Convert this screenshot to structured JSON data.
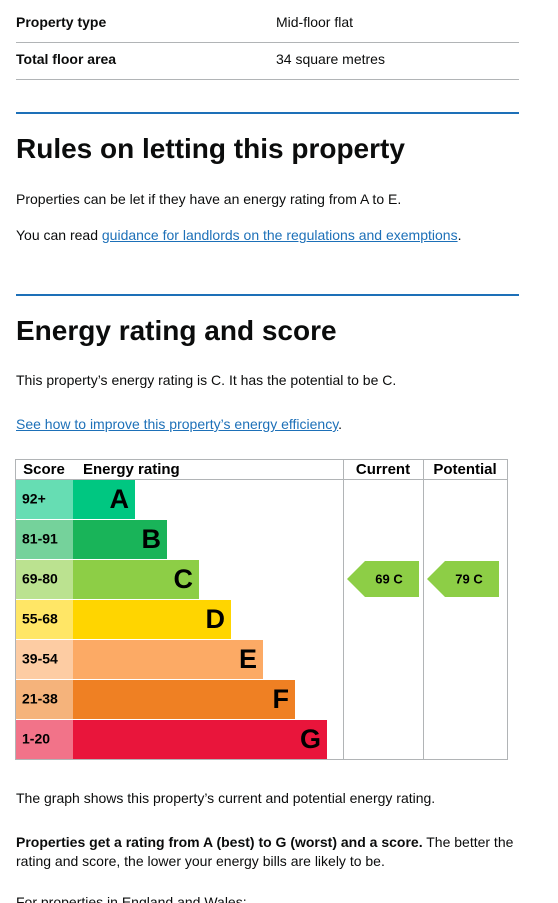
{
  "summary": {
    "rows": [
      [
        "Property type",
        "Mid-floor flat"
      ],
      [
        "Total floor area",
        "34 square metres"
      ]
    ]
  },
  "rules": {
    "title": "Rules on letting this property",
    "text": "Properties can be let if they have an energy rating from A to E.",
    "link_prefix": "You can read ",
    "link": "guidance for landlords on the regulations and exemptions",
    "link_suffix": "."
  },
  "energy": {
    "title": "Energy rating and score",
    "text": "This property’s energy rating is C. It has the potential to be C.",
    "link": "See how to improve this property’s energy efficiency",
    "link_suffix": ".",
    "chart": {
      "headers": [
        "Score",
        "Energy rating",
        "Current",
        "Potential"
      ],
      "bands": [
        {
          "score": "92+",
          "letter": "A",
          "color": "#00c781"
        },
        {
          "score": "81-91",
          "letter": "B",
          "color": "#19b459"
        },
        {
          "score": "69-80",
          "letter": "C",
          "color": "#8dce46"
        },
        {
          "score": "55-68",
          "letter": "D",
          "color": "#ffd500"
        },
        {
          "score": "39-54",
          "letter": "E",
          "color": "#fcaa65"
        },
        {
          "score": "21-38",
          "letter": "F",
          "color": "#ef8023"
        },
        {
          "score": "1-20",
          "letter": "G",
          "color": "#e9153b"
        }
      ],
      "current": "69 C",
      "potential": "79 C"
    },
    "caption": "The graph shows this property’s current and potential energy rating.",
    "bold": "Properties get a rating from A (best) to G (worst) and a score.",
    "rest": " The better the rating and score, the lower your energy bills are likely to be.",
    "next": "For properties in England and Wales:"
  }
}
